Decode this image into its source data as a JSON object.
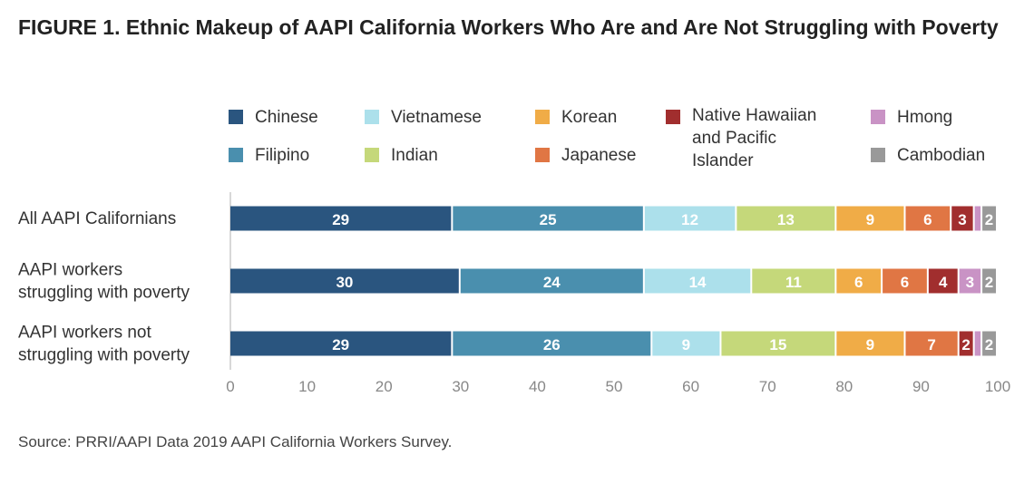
{
  "title": "FIGURE 1. Ethnic Makeup of AAPI California Workers Who Are and Are Not Struggling with Poverty",
  "source": "Source: PRRI/AAPI Data 2019 AAPI California Workers Survey.",
  "chart_data": {
    "type": "bar",
    "orientation": "horizontal",
    "stacked": true,
    "categories": [
      "All AAPI Californians",
      "AAPI workers struggling with poverty",
      "AAPI workers not struggling with poverty"
    ],
    "category_lines": [
      [
        "All AAPI Californians"
      ],
      [
        "AAPI workers",
        "struggling with poverty"
      ],
      [
        "AAPI workers not",
        "struggling with poverty"
      ]
    ],
    "series": [
      {
        "name": "Chinese",
        "color": "#2a557f",
        "values": [
          29,
          30,
          29
        ]
      },
      {
        "name": "Filipino",
        "color": "#4a8fae",
        "values": [
          25,
          24,
          26
        ]
      },
      {
        "name": "Vietnamese",
        "color": "#ace0eb",
        "values": [
          12,
          14,
          9
        ]
      },
      {
        "name": "Indian",
        "color": "#c5d87a",
        "values": [
          13,
          11,
          15
        ]
      },
      {
        "name": "Korean",
        "color": "#f0ac47",
        "values": [
          9,
          6,
          9
        ]
      },
      {
        "name": "Japanese",
        "color": "#e07644",
        "values": [
          6,
          6,
          7
        ]
      },
      {
        "name": "Native Hawaiian and Pacific Islander",
        "color": "#a12e2e",
        "values": [
          3,
          4,
          2
        ]
      },
      {
        "name": "Hmong",
        "color": "#c993c5",
        "values": [
          1,
          3,
          1
        ]
      },
      {
        "name": "Cambodian",
        "color": "#999999",
        "values": [
          2,
          2,
          2
        ]
      }
    ],
    "value_labels": [
      [
        "29",
        "25",
        "12",
        "13",
        "9",
        "6",
        "3",
        "",
        "2"
      ],
      [
        "30",
        "24",
        "14",
        "11",
        "6",
        "6",
        "4",
        "3",
        "2"
      ],
      [
        "29",
        "26",
        "9",
        "15",
        "9",
        "7",
        "2",
        "",
        "2"
      ]
    ],
    "legend_lines": [
      [
        "Chinese"
      ],
      [
        "Filipino"
      ],
      [
        "Vietnamese"
      ],
      [
        "Indian"
      ],
      [
        "Korean"
      ],
      [
        "Japanese"
      ],
      [
        "Native Hawaiian",
        "and Pacific",
        "Islander"
      ],
      [
        "Hmong"
      ],
      [
        "Cambodian"
      ]
    ],
    "xlim": [
      0,
      100
    ],
    "xticks": [
      0,
      10,
      20,
      30,
      40,
      50,
      60,
      70,
      80,
      90,
      100
    ],
    "legend_position": "top"
  }
}
